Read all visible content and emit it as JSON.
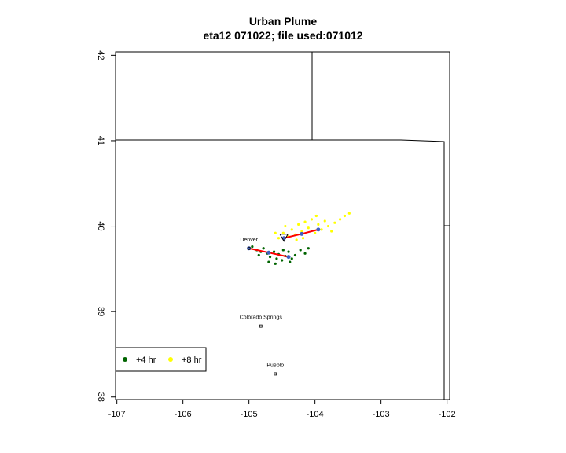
{
  "chart_data": {
    "type": "scatter",
    "title": "Urban Plume",
    "subtitle": "eta12 071022; file used:071012",
    "xlim": [
      -107.02,
      -101.96
    ],
    "ylim": [
      37.97,
      42.04
    ],
    "xticks": [
      -107,
      -106,
      -105,
      -104,
      -103,
      -102
    ],
    "yticks": [
      38,
      39,
      40,
      41,
      42
    ],
    "legend": "bottom left",
    "series": [
      {
        "name": "+4 hr",
        "color": "#006400",
        "x": [
          -104.95,
          -104.88,
          -104.82,
          -104.78,
          -104.72,
          -104.68,
          -104.62,
          -104.58,
          -104.55,
          -104.5,
          -104.45,
          -104.4,
          -104.35,
          -104.3,
          -104.22,
          -104.15,
          -104.1,
          -104.7,
          -104.6,
          -104.85,
          -104.48,
          -104.38
        ],
        "y": [
          39.76,
          39.72,
          39.7,
          39.74,
          39.68,
          39.64,
          39.7,
          39.62,
          39.67,
          39.6,
          39.65,
          39.7,
          39.62,
          39.66,
          39.72,
          39.68,
          39.74,
          39.58,
          39.56,
          39.66,
          39.72,
          39.58
        ]
      },
      {
        "name": "+8 hr",
        "color": "#ffff00",
        "x": [
          -104.55,
          -104.48,
          -104.4,
          -104.35,
          -104.3,
          -104.25,
          -104.2,
          -104.15,
          -104.1,
          -104.05,
          -104.0,
          -103.95,
          -103.9,
          -103.85,
          -103.8,
          -103.75,
          -103.7,
          -103.62,
          -103.55,
          -103.48,
          -104.45,
          -104.6,
          -104.28,
          -103.98,
          -104.18
        ],
        "y": [
          39.86,
          39.92,
          39.88,
          39.96,
          39.9,
          40.02,
          39.94,
          40.05,
          39.98,
          40.08,
          39.92,
          40.02,
          39.96,
          40.06,
          40.0,
          39.94,
          40.04,
          40.08,
          40.12,
          40.15,
          40.0,
          39.92,
          39.84,
          40.12,
          39.86
        ]
      }
    ],
    "lines": [
      {
        "color": "#ff0000",
        "x": [
          -105.0,
          -104.7,
          -104.4
        ],
        "y": [
          39.74,
          39.69,
          39.64
        ]
      },
      {
        "color": "#ff0000",
        "x": [
          -104.47,
          -104.2,
          -103.95
        ],
        "y": [
          39.86,
          39.91,
          39.96
        ]
      }
    ],
    "source": {
      "x": -104.47,
      "y": 39.86
    },
    "places": [
      {
        "label": "Denver",
        "x": -105.0,
        "y": 39.74
      },
      {
        "label": "Colorado Springs",
        "x": -104.82,
        "y": 38.83
      },
      {
        "label": "Pueblo",
        "x": -104.6,
        "y": 38.27
      }
    ]
  }
}
